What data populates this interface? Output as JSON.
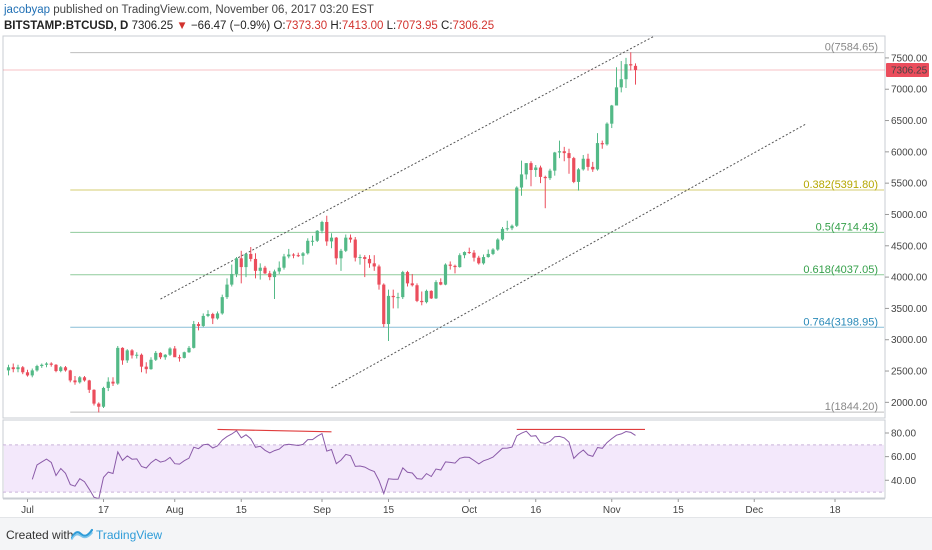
{
  "header": {
    "author": "jacobyap",
    "published": "published on TradingView.com, November 06, 2017 03:20 EST",
    "symbol": "BITSTAMP:BTCUSD, D",
    "last": "7306.25",
    "arrow": "▼",
    "change": "−66.47 (−0.9%)",
    "o_label": "O:",
    "o_value": "7373.30",
    "h_label": "H:",
    "h_value": "7413.00",
    "l_label": "L:",
    "l_value": "7073.95",
    "c_label": "C:",
    "c_value": "7306.25"
  },
  "footer": {
    "created_with": "Created with",
    "brand": "TradingView"
  },
  "colors": {
    "up": "#53b987",
    "down": "#eb4d5c",
    "rsi_line": "#8a5aa8",
    "rsi_band": "#f3e8fb",
    "price_tag": "#eb4d5c",
    "fib_0": "#888888",
    "fib_0382": "#b5a700",
    "fib_05": "#35a04a",
    "fib_0618": "#35a04a",
    "fib_0764": "#2a8ab8",
    "fib_1": "#888888",
    "divergence": "#e03c3c"
  },
  "chart_data": {
    "type": "candlestick",
    "title": "BITSTAMP:BTCUSD, D",
    "x_tick_labels": [
      "Jul",
      "17",
      "Aug",
      "15",
      "Sep",
      "15",
      "Oct",
      "16",
      "Nov",
      "15",
      "Dec",
      "18"
    ],
    "y_axis_ticks": [
      "7500.00",
      "7000.00",
      "6500.00",
      "6000.00",
      "5500.00",
      "5000.00",
      "4500.00",
      "4000.00",
      "3500.00",
      "3000.00",
      "2500.00",
      "2000.00"
    ],
    "y_range": [
      1750,
      7850
    ],
    "last_price_tag": "7306.25",
    "fibonacci": [
      {
        "label": "0(7584.65)",
        "level": 0,
        "price": 7584.65,
        "color_key": "fib_0"
      },
      {
        "label": "0.382(5391.80)",
        "level": 0.382,
        "price": 5391.8,
        "color_key": "fib_0382"
      },
      {
        "label": "0.5(4714.43)",
        "level": 0.5,
        "price": 4714.43,
        "color_key": "fib_05"
      },
      {
        "label": "0.618(4037.05)",
        "level": 0.618,
        "price": 4037.05,
        "color_key": "fib_0618"
      },
      {
        "label": "0.764(3198.95)",
        "level": 0.764,
        "price": 3198.95,
        "color_key": "fib_0764"
      },
      {
        "label": "1(1844.20)",
        "level": 1,
        "price": 1844.2,
        "color_key": "fib_1"
      }
    ],
    "trend_channel": {
      "upper": [
        {
          "date": "2017-07-29",
          "price": 3650
        },
        {
          "date": "2017-11-10",
          "price": 7850
        }
      ],
      "lower": [
        {
          "date": "2017-09-03",
          "price": 2230
        },
        {
          "date": "2017-12-12",
          "price": 6450
        }
      ]
    },
    "candles": [
      {
        "date": "2017-06-27",
        "o": 2510,
        "h": 2600,
        "l": 2430,
        "c": 2560
      },
      {
        "date": "2017-06-28",
        "o": 2560,
        "h": 2620,
        "l": 2480,
        "c": 2530
      },
      {
        "date": "2017-06-29",
        "o": 2530,
        "h": 2600,
        "l": 2480,
        "c": 2560
      },
      {
        "date": "2017-06-30",
        "o": 2560,
        "h": 2580,
        "l": 2450,
        "c": 2480
      },
      {
        "date": "2017-07-01",
        "o": 2480,
        "h": 2520,
        "l": 2410,
        "c": 2430
      },
      {
        "date": "2017-07-02",
        "o": 2430,
        "h": 2540,
        "l": 2400,
        "c": 2510
      },
      {
        "date": "2017-07-03",
        "o": 2510,
        "h": 2600,
        "l": 2490,
        "c": 2580
      },
      {
        "date": "2017-07-04",
        "o": 2580,
        "h": 2620,
        "l": 2550,
        "c": 2600
      },
      {
        "date": "2017-07-05",
        "o": 2600,
        "h": 2640,
        "l": 2560,
        "c": 2620
      },
      {
        "date": "2017-07-06",
        "o": 2620,
        "h": 2640,
        "l": 2570,
        "c": 2600
      },
      {
        "date": "2017-07-07",
        "o": 2600,
        "h": 2610,
        "l": 2480,
        "c": 2500
      },
      {
        "date": "2017-07-08",
        "o": 2500,
        "h": 2580,
        "l": 2480,
        "c": 2560
      },
      {
        "date": "2017-07-09",
        "o": 2560,
        "h": 2580,
        "l": 2490,
        "c": 2510
      },
      {
        "date": "2017-07-10",
        "o": 2510,
        "h": 2520,
        "l": 2320,
        "c": 2350
      },
      {
        "date": "2017-07-11",
        "o": 2350,
        "h": 2420,
        "l": 2280,
        "c": 2320
      },
      {
        "date": "2017-07-12",
        "o": 2320,
        "h": 2420,
        "l": 2300,
        "c": 2400
      },
      {
        "date": "2017-07-13",
        "o": 2400,
        "h": 2420,
        "l": 2330,
        "c": 2350
      },
      {
        "date": "2017-07-14",
        "o": 2350,
        "h": 2360,
        "l": 2150,
        "c": 2200
      },
      {
        "date": "2017-07-15",
        "o": 2200,
        "h": 2210,
        "l": 1950,
        "c": 1980
      },
      {
        "date": "2017-07-16",
        "o": 1980,
        "h": 2000,
        "l": 1840,
        "c": 1930
      },
      {
        "date": "2017-07-17",
        "o": 1930,
        "h": 2250,
        "l": 1910,
        "c": 2230
      },
      {
        "date": "2017-07-18",
        "o": 2230,
        "h": 2400,
        "l": 2180,
        "c": 2330
      },
      {
        "date": "2017-07-19",
        "o": 2330,
        "h": 2400,
        "l": 2260,
        "c": 2300
      },
      {
        "date": "2017-07-20",
        "o": 2300,
        "h": 2900,
        "l": 2280,
        "c": 2870
      },
      {
        "date": "2017-07-21",
        "o": 2870,
        "h": 2880,
        "l": 2600,
        "c": 2670
      },
      {
        "date": "2017-07-22",
        "o": 2670,
        "h": 2850,
        "l": 2630,
        "c": 2830
      },
      {
        "date": "2017-07-23",
        "o": 2830,
        "h": 2850,
        "l": 2700,
        "c": 2750
      },
      {
        "date": "2017-07-24",
        "o": 2750,
        "h": 2800,
        "l": 2700,
        "c": 2760
      },
      {
        "date": "2017-07-25",
        "o": 2760,
        "h": 2780,
        "l": 2480,
        "c": 2570
      },
      {
        "date": "2017-07-26",
        "o": 2570,
        "h": 2640,
        "l": 2460,
        "c": 2530
      },
      {
        "date": "2017-07-27",
        "o": 2530,
        "h": 2720,
        "l": 2520,
        "c": 2680
      },
      {
        "date": "2017-07-28",
        "o": 2680,
        "h": 2820,
        "l": 2660,
        "c": 2790
      },
      {
        "date": "2017-07-29",
        "o": 2790,
        "h": 2800,
        "l": 2690,
        "c": 2720
      },
      {
        "date": "2017-07-30",
        "o": 2720,
        "h": 2770,
        "l": 2680,
        "c": 2760
      },
      {
        "date": "2017-07-31",
        "o": 2760,
        "h": 2880,
        "l": 2740,
        "c": 2860
      },
      {
        "date": "2017-08-01",
        "o": 2860,
        "h": 2900,
        "l": 2750,
        "c": 2720
      },
      {
        "date": "2017-08-02",
        "o": 2720,
        "h": 2760,
        "l": 2650,
        "c": 2710
      },
      {
        "date": "2017-08-03",
        "o": 2710,
        "h": 2810,
        "l": 2700,
        "c": 2800
      },
      {
        "date": "2017-08-04",
        "o": 2800,
        "h": 2900,
        "l": 2790,
        "c": 2870
      },
      {
        "date": "2017-08-05",
        "o": 2870,
        "h": 3300,
        "l": 2860,
        "c": 3250
      },
      {
        "date": "2017-08-06",
        "o": 3250,
        "h": 3280,
        "l": 3150,
        "c": 3220
      },
      {
        "date": "2017-08-07",
        "o": 3220,
        "h": 3420,
        "l": 3200,
        "c": 3380
      },
      {
        "date": "2017-08-08",
        "o": 3380,
        "h": 3470,
        "l": 3360,
        "c": 3410
      },
      {
        "date": "2017-08-09",
        "o": 3410,
        "h": 3430,
        "l": 3250,
        "c": 3340
      },
      {
        "date": "2017-08-10",
        "o": 3340,
        "h": 3450,
        "l": 3320,
        "c": 3420
      },
      {
        "date": "2017-08-11",
        "o": 3420,
        "h": 3720,
        "l": 3400,
        "c": 3680
      },
      {
        "date": "2017-08-12",
        "o": 3680,
        "h": 3980,
        "l": 3650,
        "c": 3880
      },
      {
        "date": "2017-08-13",
        "o": 3880,
        "h": 4200,
        "l": 3850,
        "c": 4050
      },
      {
        "date": "2017-08-14",
        "o": 4050,
        "h": 4320,
        "l": 4000,
        "c": 4300
      },
      {
        "date": "2017-08-15",
        "o": 4300,
        "h": 4420,
        "l": 3900,
        "c": 4160
      },
      {
        "date": "2017-08-16",
        "o": 4160,
        "h": 4380,
        "l": 4000,
        "c": 4370
      },
      {
        "date": "2017-08-17",
        "o": 4370,
        "h": 4480,
        "l": 4250,
        "c": 4290
      },
      {
        "date": "2017-08-18",
        "o": 4290,
        "h": 4380,
        "l": 3980,
        "c": 4100
      },
      {
        "date": "2017-08-19",
        "o": 4100,
        "h": 4220,
        "l": 3960,
        "c": 4150
      },
      {
        "date": "2017-08-20",
        "o": 4150,
        "h": 4180,
        "l": 4050,
        "c": 4060
      },
      {
        "date": "2017-08-21",
        "o": 4060,
        "h": 4100,
        "l": 3950,
        "c": 4000
      },
      {
        "date": "2017-08-22",
        "o": 4000,
        "h": 4120,
        "l": 3650,
        "c": 4090
      },
      {
        "date": "2017-08-23",
        "o": 4090,
        "h": 4250,
        "l": 4050,
        "c": 4150
      },
      {
        "date": "2017-08-24",
        "o": 4150,
        "h": 4370,
        "l": 4120,
        "c": 4330
      },
      {
        "date": "2017-08-25",
        "o": 4330,
        "h": 4450,
        "l": 4300,
        "c": 4360
      },
      {
        "date": "2017-08-26",
        "o": 4360,
        "h": 4380,
        "l": 4300,
        "c": 4350
      },
      {
        "date": "2017-08-27",
        "o": 4350,
        "h": 4390,
        "l": 4320,
        "c": 4340
      },
      {
        "date": "2017-08-28",
        "o": 4340,
        "h": 4400,
        "l": 4200,
        "c": 4380
      },
      {
        "date": "2017-08-29",
        "o": 4380,
        "h": 4620,
        "l": 4360,
        "c": 4580
      },
      {
        "date": "2017-08-30",
        "o": 4580,
        "h": 4660,
        "l": 4500,
        "c": 4580
      },
      {
        "date": "2017-08-31",
        "o": 4580,
        "h": 4750,
        "l": 4560,
        "c": 4740
      },
      {
        "date": "2017-09-01",
        "o": 4740,
        "h": 4900,
        "l": 4700,
        "c": 4880
      },
      {
        "date": "2017-09-02",
        "o": 4880,
        "h": 4980,
        "l": 4500,
        "c": 4570
      },
      {
        "date": "2017-09-03",
        "o": 4570,
        "h": 4700,
        "l": 4460,
        "c": 4630
      },
      {
        "date": "2017-09-04",
        "o": 4630,
        "h": 4640,
        "l": 4200,
        "c": 4300
      },
      {
        "date": "2017-09-05",
        "o": 4300,
        "h": 4450,
        "l": 4100,
        "c": 4420
      },
      {
        "date": "2017-09-06",
        "o": 4420,
        "h": 4680,
        "l": 4400,
        "c": 4630
      },
      {
        "date": "2017-09-07",
        "o": 4630,
        "h": 4680,
        "l": 4550,
        "c": 4600
      },
      {
        "date": "2017-09-08",
        "o": 4600,
        "h": 4640,
        "l": 4250,
        "c": 4310
      },
      {
        "date": "2017-09-09",
        "o": 4310,
        "h": 4360,
        "l": 4200,
        "c": 4320
      },
      {
        "date": "2017-09-10",
        "o": 4320,
        "h": 4350,
        "l": 4000,
        "c": 4290
      },
      {
        "date": "2017-09-11",
        "o": 4290,
        "h": 4350,
        "l": 4150,
        "c": 4220
      },
      {
        "date": "2017-09-12",
        "o": 4220,
        "h": 4350,
        "l": 4100,
        "c": 4170
      },
      {
        "date": "2017-09-13",
        "o": 4170,
        "h": 4200,
        "l": 3800,
        "c": 3880
      },
      {
        "date": "2017-09-14",
        "o": 3880,
        "h": 3900,
        "l": 3200,
        "c": 3250
      },
      {
        "date": "2017-09-15",
        "o": 3250,
        "h": 3800,
        "l": 2980,
        "c": 3700
      },
      {
        "date": "2017-09-16",
        "o": 3700,
        "h": 3800,
        "l": 3500,
        "c": 3680
      },
      {
        "date": "2017-09-17",
        "o": 3680,
        "h": 3750,
        "l": 3500,
        "c": 3680
      },
      {
        "date": "2017-09-18",
        "o": 3680,
        "h": 4100,
        "l": 3650,
        "c": 4080
      },
      {
        "date": "2017-09-19",
        "o": 4080,
        "h": 4100,
        "l": 3850,
        "c": 3900
      },
      {
        "date": "2017-09-20",
        "o": 3900,
        "h": 4050,
        "l": 3850,
        "c": 3870
      },
      {
        "date": "2017-09-21",
        "o": 3870,
        "h": 3900,
        "l": 3600,
        "c": 3620
      },
      {
        "date": "2017-09-22",
        "o": 3620,
        "h": 3770,
        "l": 3550,
        "c": 3600
      },
      {
        "date": "2017-09-23",
        "o": 3600,
        "h": 3800,
        "l": 3580,
        "c": 3780
      },
      {
        "date": "2017-09-24",
        "o": 3780,
        "h": 3790,
        "l": 3650,
        "c": 3660
      },
      {
        "date": "2017-09-25",
        "o": 3660,
        "h": 3950,
        "l": 3650,
        "c": 3920
      },
      {
        "date": "2017-09-26",
        "o": 3920,
        "h": 3980,
        "l": 3870,
        "c": 3880
      },
      {
        "date": "2017-09-27",
        "o": 3880,
        "h": 4220,
        "l": 3870,
        "c": 4200
      },
      {
        "date": "2017-09-28",
        "o": 4200,
        "h": 4250,
        "l": 4120,
        "c": 4180
      },
      {
        "date": "2017-09-29",
        "o": 4180,
        "h": 4200,
        "l": 4060,
        "c": 4160
      },
      {
        "date": "2017-09-30",
        "o": 4160,
        "h": 4380,
        "l": 4150,
        "c": 4350
      },
      {
        "date": "2017-10-01",
        "o": 4350,
        "h": 4410,
        "l": 4300,
        "c": 4400
      },
      {
        "date": "2017-10-02",
        "o": 4400,
        "h": 4470,
        "l": 4370,
        "c": 4390
      },
      {
        "date": "2017-10-03",
        "o": 4390,
        "h": 4430,
        "l": 4250,
        "c": 4310
      },
      {
        "date": "2017-10-04",
        "o": 4310,
        "h": 4340,
        "l": 4200,
        "c": 4220
      },
      {
        "date": "2017-10-05",
        "o": 4220,
        "h": 4360,
        "l": 4200,
        "c": 4320
      },
      {
        "date": "2017-10-06",
        "o": 4320,
        "h": 4440,
        "l": 4310,
        "c": 4370
      },
      {
        "date": "2017-10-07",
        "o": 4370,
        "h": 4460,
        "l": 4350,
        "c": 4440
      },
      {
        "date": "2017-10-08",
        "o": 4440,
        "h": 4620,
        "l": 4420,
        "c": 4600
      },
      {
        "date": "2017-10-09",
        "o": 4600,
        "h": 4800,
        "l": 4580,
        "c": 4770
      },
      {
        "date": "2017-10-10",
        "o": 4770,
        "h": 4900,
        "l": 4740,
        "c": 4780
      },
      {
        "date": "2017-10-11",
        "o": 4780,
        "h": 4840,
        "l": 4750,
        "c": 4820
      },
      {
        "date": "2017-10-12",
        "o": 4820,
        "h": 5450,
        "l": 4800,
        "c": 5430
      },
      {
        "date": "2017-10-13",
        "o": 5430,
        "h": 5860,
        "l": 5300,
        "c": 5640
      },
      {
        "date": "2017-10-14",
        "o": 5640,
        "h": 5820,
        "l": 5560,
        "c": 5820
      },
      {
        "date": "2017-10-15",
        "o": 5820,
        "h": 5850,
        "l": 5450,
        "c": 5710
      },
      {
        "date": "2017-10-16",
        "o": 5710,
        "h": 5790,
        "l": 5600,
        "c": 5750
      },
      {
        "date": "2017-10-17",
        "o": 5750,
        "h": 5780,
        "l": 5500,
        "c": 5600
      },
      {
        "date": "2017-10-18",
        "o": 5600,
        "h": 5620,
        "l": 5100,
        "c": 5580
      },
      {
        "date": "2017-10-19",
        "o": 5580,
        "h": 5730,
        "l": 5550,
        "c": 5700
      },
      {
        "date": "2017-10-20",
        "o": 5700,
        "h": 6000,
        "l": 5620,
        "c": 5990
      },
      {
        "date": "2017-10-21",
        "o": 5990,
        "h": 6180,
        "l": 5900,
        "c": 6010
      },
      {
        "date": "2017-10-22",
        "o": 6010,
        "h": 6080,
        "l": 5850,
        "c": 5980
      },
      {
        "date": "2017-10-23",
        "o": 5980,
        "h": 6050,
        "l": 5650,
        "c": 5900
      },
      {
        "date": "2017-10-24",
        "o": 5900,
        "h": 5920,
        "l": 5500,
        "c": 5520
      },
      {
        "date": "2017-10-25",
        "o": 5520,
        "h": 5740,
        "l": 5380,
        "c": 5720
      },
      {
        "date": "2017-10-26",
        "o": 5720,
        "h": 5950,
        "l": 5700,
        "c": 5890
      },
      {
        "date": "2017-10-27",
        "o": 5890,
        "h": 5970,
        "l": 5700,
        "c": 5760
      },
      {
        "date": "2017-10-28",
        "o": 5760,
        "h": 5840,
        "l": 5680,
        "c": 5720
      },
      {
        "date": "2017-10-29",
        "o": 5720,
        "h": 6300,
        "l": 5700,
        "c": 6140
      },
      {
        "date": "2017-10-30",
        "o": 6140,
        "h": 6180,
        "l": 6050,
        "c": 6120
      },
      {
        "date": "2017-10-31",
        "o": 6120,
        "h": 6470,
        "l": 6100,
        "c": 6450
      },
      {
        "date": "2017-11-01",
        "o": 6450,
        "h": 6750,
        "l": 6380,
        "c": 6740
      },
      {
        "date": "2017-11-02",
        "o": 6740,
        "h": 7350,
        "l": 6740,
        "c": 7030
      },
      {
        "date": "2017-11-03",
        "o": 7030,
        "h": 7450,
        "l": 6950,
        "c": 7160
      },
      {
        "date": "2017-11-04",
        "o": 7160,
        "h": 7500,
        "l": 7020,
        "c": 7400
      },
      {
        "date": "2017-11-05",
        "o": 7400,
        "h": 7590,
        "l": 7300,
        "c": 7380
      },
      {
        "date": "2017-11-06",
        "o": 7373.3,
        "h": 7413.0,
        "l": 7073.95,
        "c": 7306.25
      }
    ],
    "rsi": {
      "y_axis_ticks": [
        "80.00",
        "60.00",
        "40.00"
      ],
      "band": [
        30,
        70
      ],
      "y_range": [
        25,
        91
      ],
      "divergence_lines": [
        {
          "from": {
            "date": "2017-08-10",
            "value": 83
          },
          "to": {
            "date": "2017-09-03",
            "value": 81
          }
        },
        {
          "from": {
            "date": "2017-10-12",
            "value": 83
          },
          "to": {
            "date": "2017-11-08",
            "value": 83
          }
        }
      ]
    }
  }
}
